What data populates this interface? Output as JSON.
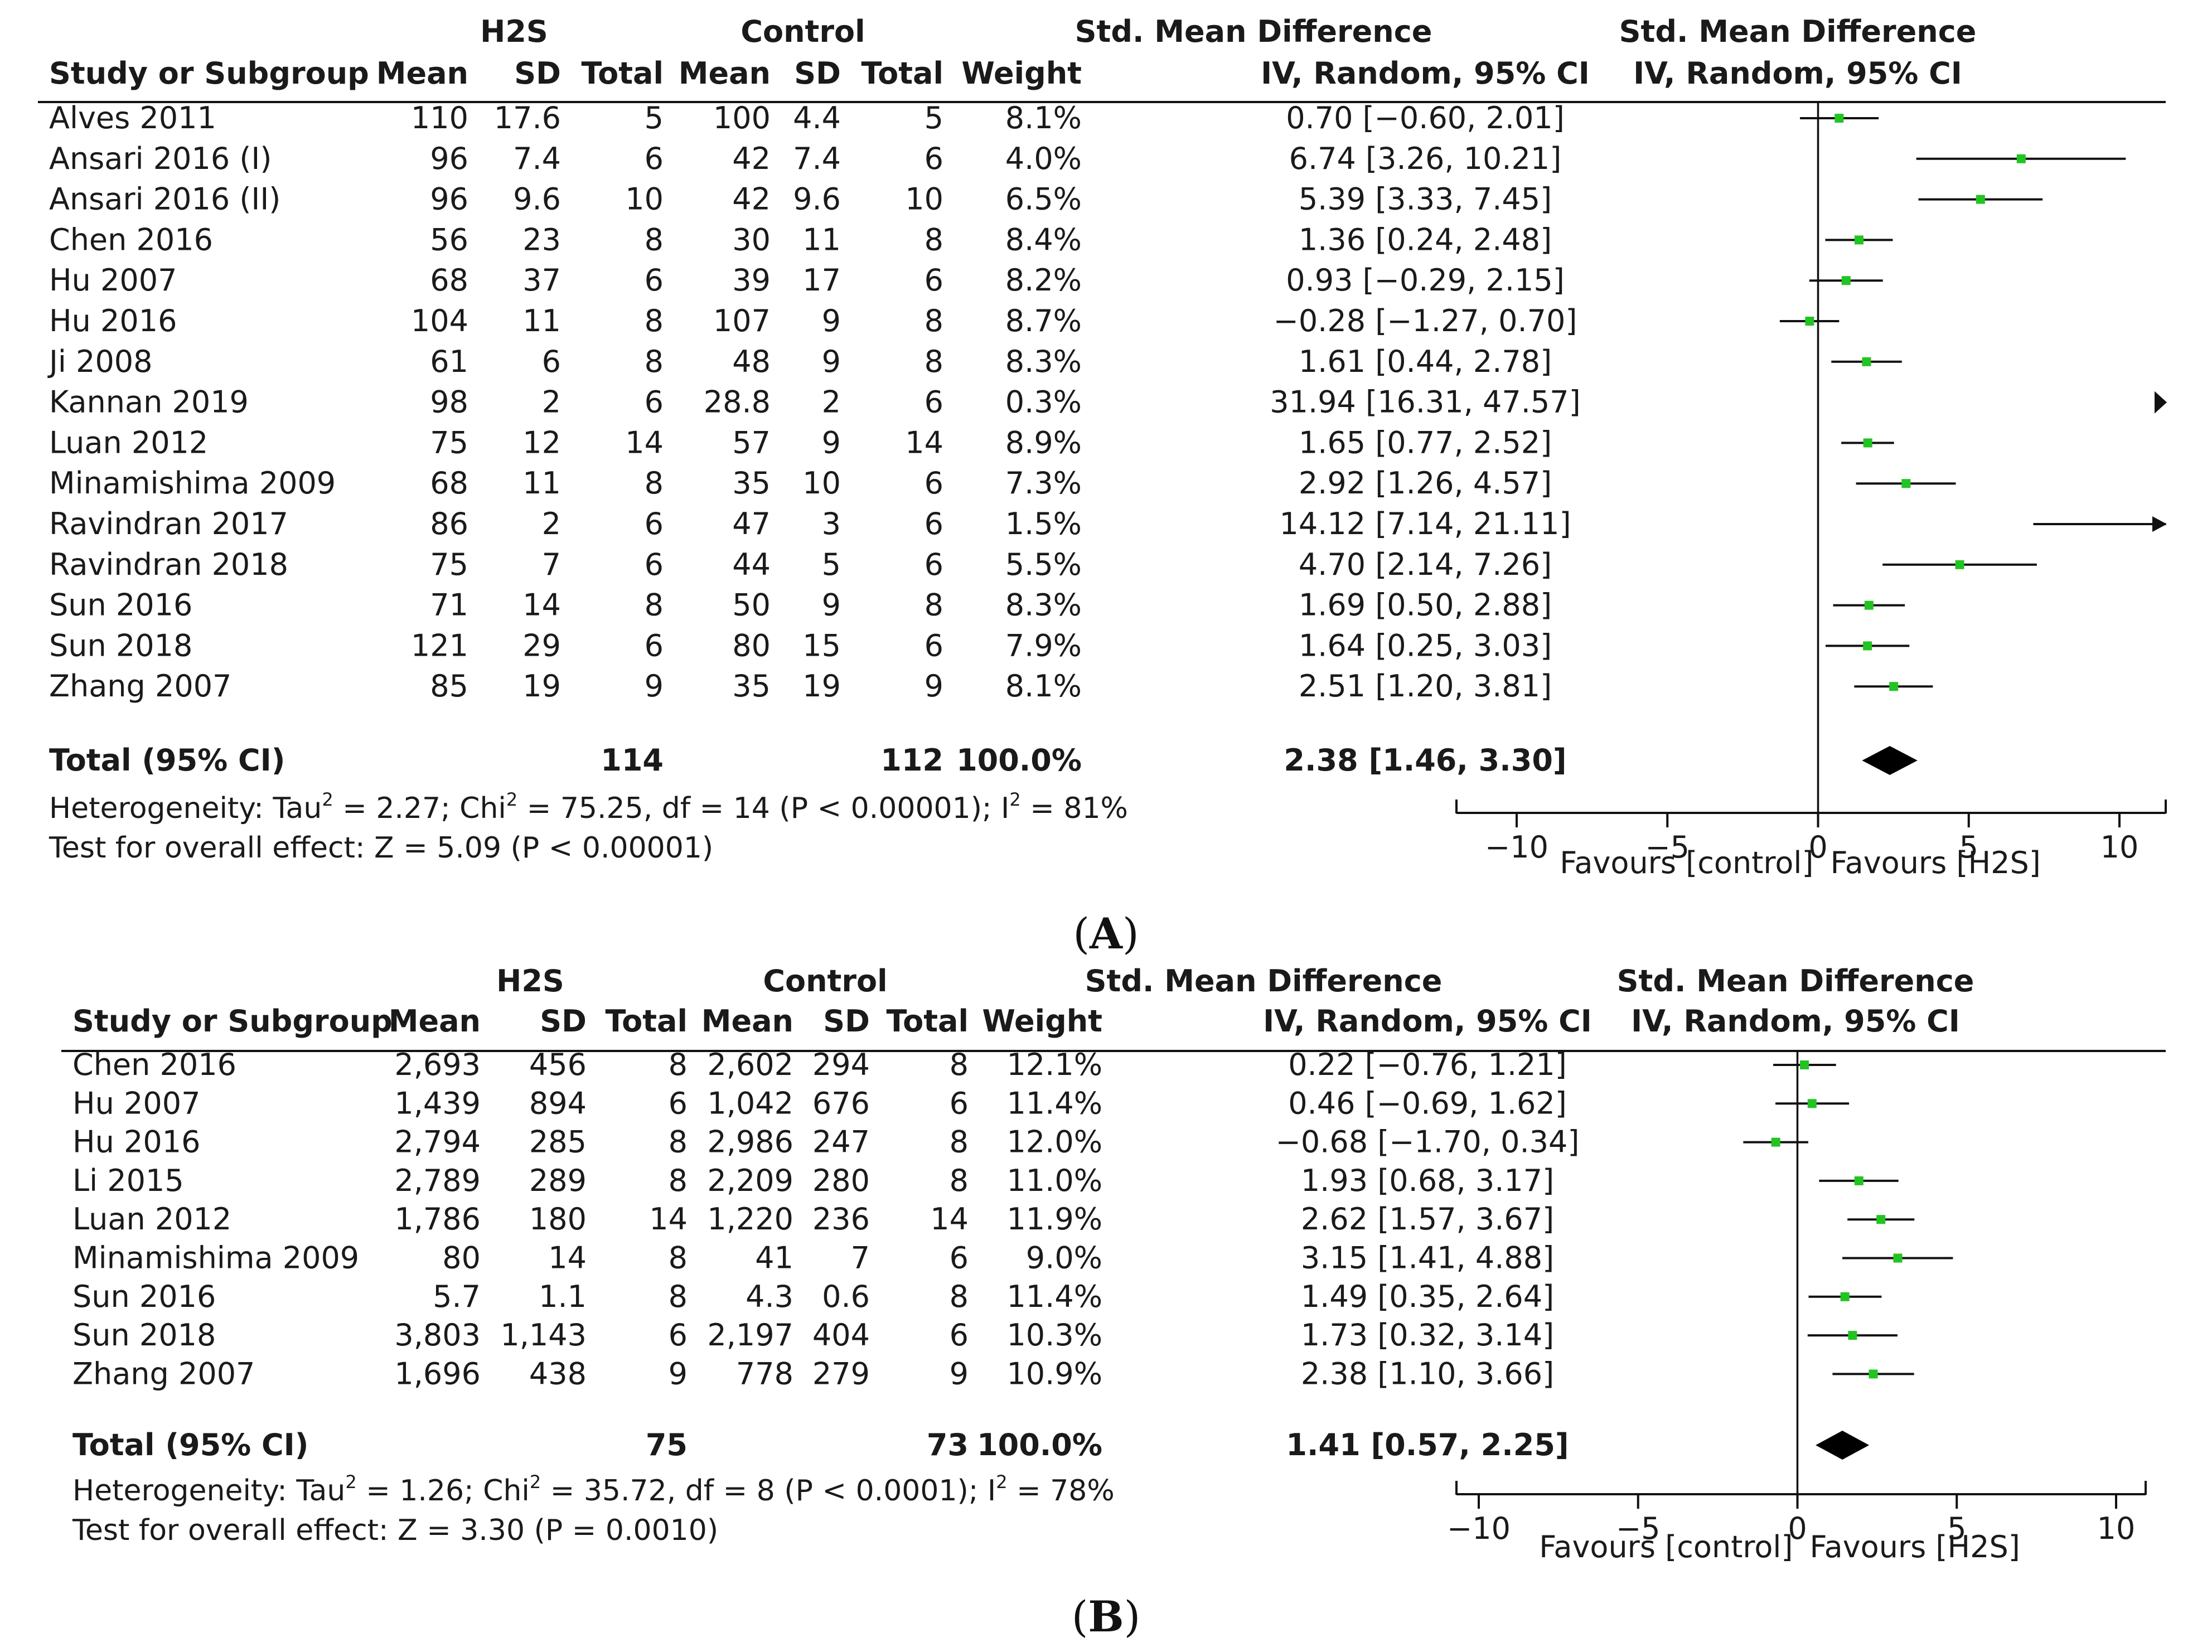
{
  "chart_data": [
    {
      "type": "forest",
      "group_headers": {
        "treatment": "H2S",
        "control": "Control"
      },
      "columns": [
        "Study or Subgroup",
        "Mean",
        "SD",
        "Total",
        "Mean",
        "SD",
        "Total",
        "Weight",
        "IV, Random, 95% CI"
      ],
      "effect_header": "Std. Mean Difference",
      "plot_header": [
        "Std. Mean Difference",
        "IV, Random, 95% CI"
      ],
      "rows": [
        {
          "study": "Alves 2011",
          "m1": "110",
          "sd1": "17.6",
          "n1": "5",
          "m2": "100",
          "sd2": "4.4",
          "n2": "5",
          "weight": "8.1%",
          "ci_text": "0.70 [−0.60, 2.01]",
          "est": 0.7,
          "lo": -0.6,
          "hi": 2.01
        },
        {
          "study": "Ansari 2016 (I)",
          "m1": "96",
          "sd1": "7.4",
          "n1": "6",
          "m2": "42",
          "sd2": "7.4",
          "n2": "6",
          "weight": "4.0%",
          "ci_text": "6.74 [3.26, 10.21]",
          "est": 6.74,
          "lo": 3.26,
          "hi": 10.21
        },
        {
          "study": "Ansari 2016 (II)",
          "m1": "96",
          "sd1": "9.6",
          "n1": "10",
          "m2": "42",
          "sd2": "9.6",
          "n2": "10",
          "weight": "6.5%",
          "ci_text": "5.39 [3.33, 7.45]",
          "est": 5.39,
          "lo": 3.33,
          "hi": 7.45
        },
        {
          "study": "Chen 2016",
          "m1": "56",
          "sd1": "23",
          "n1": "8",
          "m2": "30",
          "sd2": "11",
          "n2": "8",
          "weight": "8.4%",
          "ci_text": "1.36 [0.24, 2.48]",
          "est": 1.36,
          "lo": 0.24,
          "hi": 2.48
        },
        {
          "study": "Hu 2007",
          "m1": "68",
          "sd1": "37",
          "n1": "6",
          "m2": "39",
          "sd2": "17",
          "n2": "6",
          "weight": "8.2%",
          "ci_text": "0.93 [−0.29, 2.15]",
          "est": 0.93,
          "lo": -0.29,
          "hi": 2.15
        },
        {
          "study": "Hu 2016",
          "m1": "104",
          "sd1": "11",
          "n1": "8",
          "m2": "107",
          "sd2": "9",
          "n2": "8",
          "weight": "8.7%",
          "ci_text": "−0.28 [−1.27, 0.70]",
          "est": -0.28,
          "lo": -1.27,
          "hi": 0.7
        },
        {
          "study": "Ji 2008",
          "m1": "61",
          "sd1": "6",
          "n1": "8",
          "m2": "48",
          "sd2": "9",
          "n2": "8",
          "weight": "8.3%",
          "ci_text": "1.61 [0.44, 2.78]",
          "est": 1.61,
          "lo": 0.44,
          "hi": 2.78
        },
        {
          "study": "Kannan 2019",
          "m1": "98",
          "sd1": "2",
          "n1": "6",
          "m2": "28.8",
          "sd2": "2",
          "n2": "6",
          "weight": "0.3%",
          "ci_text": "31.94 [16.31, 47.57]",
          "est": 31.94,
          "lo": 16.31,
          "hi": 47.57
        },
        {
          "study": "Luan 2012",
          "m1": "75",
          "sd1": "12",
          "n1": "14",
          "m2": "57",
          "sd2": "9",
          "n2": "14",
          "weight": "8.9%",
          "ci_text": "1.65 [0.77, 2.52]",
          "est": 1.65,
          "lo": 0.77,
          "hi": 2.52
        },
        {
          "study": "Minamishima 2009",
          "m1": "68",
          "sd1": "11",
          "n1": "8",
          "m2": "35",
          "sd2": "10",
          "n2": "6",
          "weight": "7.3%",
          "ci_text": "2.92 [1.26, 4.57]",
          "est": 2.92,
          "lo": 1.26,
          "hi": 4.57
        },
        {
          "study": "Ravindran 2017",
          "m1": "86",
          "sd1": "2",
          "n1": "6",
          "m2": "47",
          "sd2": "3",
          "n2": "6",
          "weight": "1.5%",
          "ci_text": "14.12 [7.14, 21.11]",
          "est": 14.12,
          "lo": 7.14,
          "hi": 21.11
        },
        {
          "study": "Ravindran 2018",
          "m1": "75",
          "sd1": "7",
          "n1": "6",
          "m2": "44",
          "sd2": "5",
          "n2": "6",
          "weight": "5.5%",
          "ci_text": "4.70 [2.14, 7.26]",
          "est": 4.7,
          "lo": 2.14,
          "hi": 7.26
        },
        {
          "study": "Sun 2016",
          "m1": "71",
          "sd1": "14",
          "n1": "8",
          "m2": "50",
          "sd2": "9",
          "n2": "8",
          "weight": "8.3%",
          "ci_text": "1.69 [0.50, 2.88]",
          "est": 1.69,
          "lo": 0.5,
          "hi": 2.88
        },
        {
          "study": "Sun 2018",
          "m1": "121",
          "sd1": "29",
          "n1": "6",
          "m2": "80",
          "sd2": "15",
          "n2": "6",
          "weight": "7.9%",
          "ci_text": "1.64 [0.25, 3.03]",
          "est": 1.64,
          "lo": 0.25,
          "hi": 3.03
        },
        {
          "study": "Zhang 2007",
          "m1": "85",
          "sd1": "19",
          "n1": "9",
          "m2": "35",
          "sd2": "19",
          "n2": "9",
          "weight": "8.1%",
          "ci_text": "2.51 [1.20, 3.81]",
          "est": 2.51,
          "lo": 1.2,
          "hi": 3.81
        }
      ],
      "total": {
        "label": "Total (95% CI)",
        "n1": "114",
        "n2": "112",
        "weight": "100.0%",
        "ci_text": "2.38 [1.46, 3.30]",
        "est": 2.38,
        "lo": 1.46,
        "hi": 3.3
      },
      "heterogeneity": {
        "prefix": "Heterogeneity: Tau",
        "tau2": "2",
        "mid": " = 2.27; Chi",
        "chi2": "2",
        "mid2": " = 75.25, df = 14 (P < 0.00001); I",
        "i2": "2",
        "end": " = 81%"
      },
      "overall": "Test for overall effect: Z = 5.09 (P < 0.00001)",
      "xlim": [
        -10,
        10
      ],
      "x_ticks": [
        -10,
        -5,
        0,
        5,
        10
      ],
      "x_tick_labels": [
        "−10",
        "−5",
        "0",
        "5",
        "10"
      ],
      "favours_left": "Favours [control]",
      "favours_right": "Favours [H2S]",
      "panel_label": "A"
    },
    {
      "type": "forest",
      "group_headers": {
        "treatment": "H2S",
        "control": "Control"
      },
      "columns": [
        "Study or Subgroup",
        "Mean",
        "SD",
        "Total",
        "Mean",
        "SD",
        "Total",
        "Weight",
        "IV, Random, 95% CI"
      ],
      "effect_header": "Std. Mean Difference",
      "plot_header": [
        "Std. Mean Difference",
        "IV, Random, 95% CI"
      ],
      "rows": [
        {
          "study": "Chen 2016",
          "m1": "2,693",
          "sd1": "456",
          "n1": "8",
          "m2": "2,602",
          "sd2": "294",
          "n2": "8",
          "weight": "12.1%",
          "ci_text": "0.22 [−0.76, 1.21]",
          "est": 0.22,
          "lo": -0.76,
          "hi": 1.21
        },
        {
          "study": "Hu 2007",
          "m1": "1,439",
          "sd1": "894",
          "n1": "6",
          "m2": "1,042",
          "sd2": "676",
          "n2": "6",
          "weight": "11.4%",
          "ci_text": "0.46 [−0.69, 1.62]",
          "est": 0.46,
          "lo": -0.69,
          "hi": 1.62
        },
        {
          "study": "Hu 2016",
          "m1": "2,794",
          "sd1": "285",
          "n1": "8",
          "m2": "2,986",
          "sd2": "247",
          "n2": "8",
          "weight": "12.0%",
          "ci_text": "−0.68 [−1.70, 0.34]",
          "est": -0.68,
          "lo": -1.7,
          "hi": 0.34
        },
        {
          "study": "Li 2015",
          "m1": "2,789",
          "sd1": "289",
          "n1": "8",
          "m2": "2,209",
          "sd2": "280",
          "n2": "8",
          "weight": "11.0%",
          "ci_text": "1.93 [0.68, 3.17]",
          "est": 1.93,
          "lo": 0.68,
          "hi": 3.17
        },
        {
          "study": "Luan 2012",
          "m1": "1,786",
          "sd1": "180",
          "n1": "14",
          "m2": "1,220",
          "sd2": "236",
          "n2": "14",
          "weight": "11.9%",
          "ci_text": "2.62 [1.57, 3.67]",
          "est": 2.62,
          "lo": 1.57,
          "hi": 3.67
        },
        {
          "study": "Minamishima 2009",
          "m1": "80",
          "sd1": "14",
          "n1": "8",
          "m2": "41",
          "sd2": "7",
          "n2": "6",
          "weight": "9.0%",
          "ci_text": "3.15 [1.41, 4.88]",
          "est": 3.15,
          "lo": 1.41,
          "hi": 4.88
        },
        {
          "study": "Sun 2016",
          "m1": "5.7",
          "sd1": "1.1",
          "n1": "8",
          "m2": "4.3",
          "sd2": "0.6",
          "n2": "8",
          "weight": "11.4%",
          "ci_text": "1.49 [0.35, 2.64]",
          "est": 1.49,
          "lo": 0.35,
          "hi": 2.64
        },
        {
          "study": "Sun 2018",
          "m1": "3,803",
          "sd1": "1,143",
          "n1": "6",
          "m2": "2,197",
          "sd2": "404",
          "n2": "6",
          "weight": "10.3%",
          "ci_text": "1.73 [0.32, 3.14]",
          "est": 1.73,
          "lo": 0.32,
          "hi": 3.14
        },
        {
          "study": "Zhang 2007",
          "m1": "1,696",
          "sd1": "438",
          "n1": "9",
          "m2": "778",
          "sd2": "279",
          "n2": "9",
          "weight": "10.9%",
          "ci_text": "2.38 [1.10, 3.66]",
          "est": 2.38,
          "lo": 1.1,
          "hi": 3.66
        }
      ],
      "total": {
        "label": "Total (95% CI)",
        "n1": "75",
        "n2": "73",
        "weight": "100.0%",
        "ci_text": "1.41 [0.57, 2.25]",
        "est": 1.41,
        "lo": 0.57,
        "hi": 2.25
      },
      "heterogeneity": {
        "prefix": "Heterogeneity: Tau",
        "tau2": "2",
        "mid": " = 1.26; Chi",
        "chi2": "2",
        "mid2": " = 35.72, df = 8 (P < 0.0001); I",
        "i2": "2",
        "end": " = 78%"
      },
      "overall": "Test for overall effect: Z = 3.30 (P = 0.0010)",
      "xlim": [
        -10,
        10
      ],
      "x_ticks": [
        -10,
        -5,
        0,
        5,
        10
      ],
      "x_tick_labels": [
        "−10",
        "−5",
        "0",
        "5",
        "10"
      ],
      "favours_left": "Favours [control]",
      "favours_right": "Favours [H2S]",
      "panel_label": "B"
    }
  ],
  "colors": {
    "marker": "#22c422",
    "line": "#111111",
    "diamond": "#000000"
  }
}
